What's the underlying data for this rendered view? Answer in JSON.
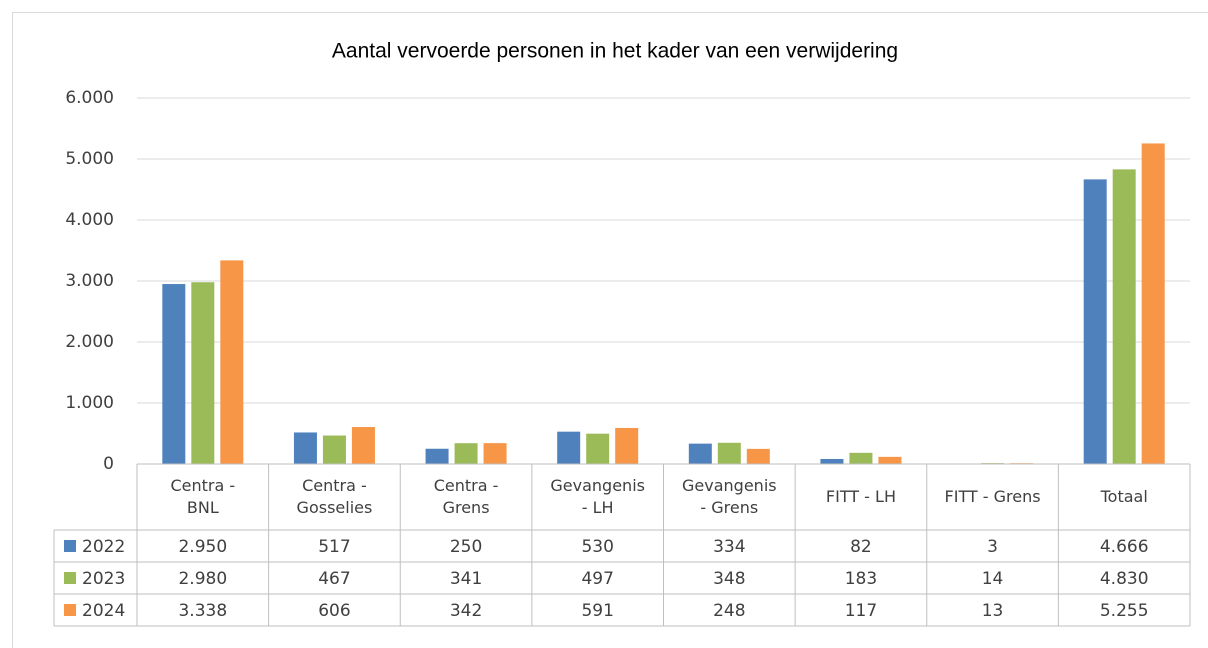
{
  "chart_data": {
    "type": "bar",
    "title": "Aantal vervoerde personen in het kader van een verwijdering",
    "categories": [
      "Centra -\nBNL",
      "Centra -\nGosselies",
      "Centra -\nGrens",
      "Gevangenis\n- LH",
      "Gevangenis\n- Grens",
      "FITT - LH",
      "FITT - Grens",
      "Totaal"
    ],
    "series": [
      {
        "name": "2022",
        "color": "#4f81bd",
        "values": [
          2950,
          517,
          250,
          530,
          334,
          82,
          3,
          4666
        ],
        "value_labels": [
          "2.950",
          "517",
          "250",
          "530",
          "334",
          "82",
          "3",
          "4.666"
        ]
      },
      {
        "name": "2023",
        "color": "#9bbb59",
        "values": [
          2980,
          467,
          341,
          497,
          348,
          183,
          14,
          4830
        ],
        "value_labels": [
          "2.980",
          "467",
          "341",
          "497",
          "348",
          "183",
          "14",
          "4.830"
        ]
      },
      {
        "name": "2024",
        "color": "#f79646",
        "values": [
          3338,
          606,
          342,
          591,
          248,
          117,
          13,
          5255
        ],
        "value_labels": [
          "3.338",
          "606",
          "342",
          "591",
          "248",
          "117",
          "13",
          "5.255"
        ]
      }
    ],
    "ylim": [
      0,
      6000
    ],
    "yticks": [
      0,
      {
        "value": 1000,
        "label": "1.000"
      },
      {
        "value": 2000,
        "label": "2.000"
      },
      {
        "value": 3000,
        "label": "3.000"
      },
      {
        "value": 4000,
        "label": "4.000"
      },
      {
        "value": 5000,
        "label": "5.000"
      },
      {
        "value": 6000,
        "label": "6.000"
      }
    ],
    "grid": true
  }
}
